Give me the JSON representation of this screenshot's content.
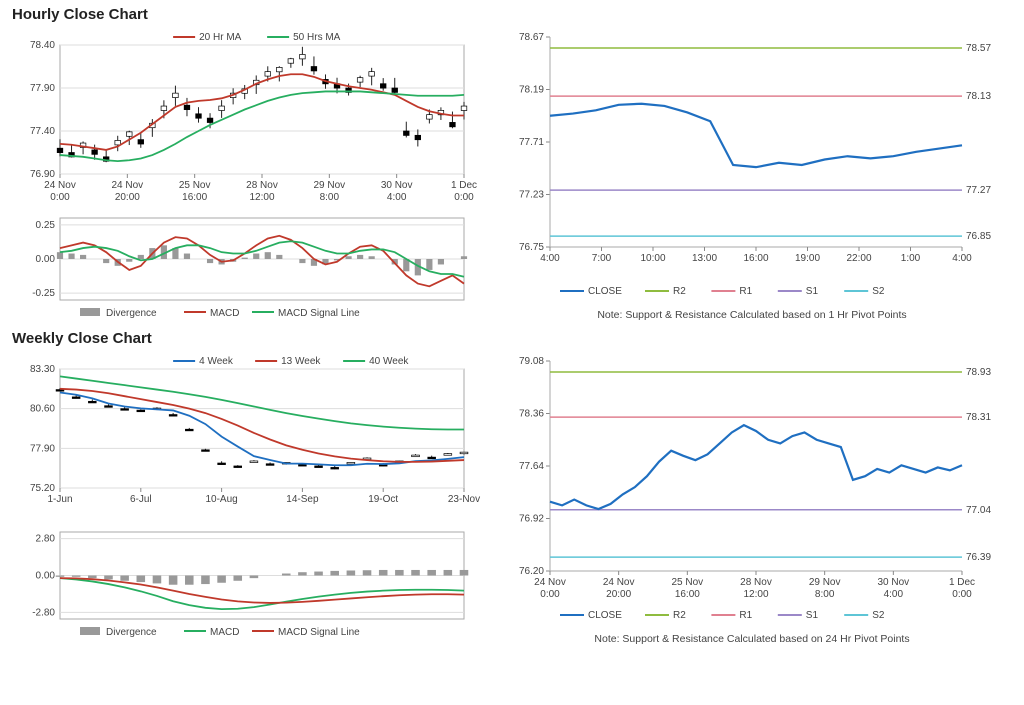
{
  "hourly": {
    "title": "Hourly Close Chart",
    "main": {
      "legend": [
        {
          "label": "20 Hr MA",
          "color": "#c0392b"
        },
        {
          "label": "50 Hrs MA",
          "color": "#27ae60"
        }
      ],
      "y_ticks": [
        76.9,
        77.4,
        77.9,
        78.4
      ],
      "ylim": [
        76.9,
        78.4
      ],
      "x_labels": [
        "24 Nov 0:00",
        "24 Nov 20:00",
        "25 Nov 16:00",
        "28 Nov 12:00",
        "29 Nov 8:00",
        "30 Nov 4:00",
        "1 Dec 0:00"
      ],
      "price": [
        77.2,
        77.15,
        77.22,
        77.18,
        77.1,
        77.25,
        77.35,
        77.3,
        77.45,
        77.65,
        77.8,
        77.7,
        77.6,
        77.55,
        77.65,
        77.8,
        77.85,
        77.95,
        78.05,
        78.1,
        78.2,
        78.25,
        78.15,
        78.0,
        77.95,
        77.9,
        77.98,
        78.05,
        77.95,
        77.9,
        77.4,
        77.35,
        77.55,
        77.6,
        77.5,
        77.65
      ],
      "ma20": [
        77.25,
        77.24,
        77.22,
        77.2,
        77.18,
        77.22,
        77.3,
        77.38,
        77.48,
        77.58,
        77.68,
        77.73,
        77.75,
        77.76,
        77.78,
        77.82,
        77.88,
        77.95,
        78.0,
        78.04,
        78.06,
        78.06,
        78.03,
        77.98,
        77.95,
        77.92,
        77.9,
        77.88,
        77.85,
        77.82,
        77.75,
        77.68,
        77.63,
        77.6,
        77.58,
        77.58
      ],
      "ma50": [
        77.12,
        77.11,
        77.1,
        77.08,
        77.06,
        77.05,
        77.06,
        77.08,
        77.12,
        77.18,
        77.25,
        77.33,
        77.4,
        77.47,
        77.53,
        77.59,
        77.65,
        77.7,
        77.75,
        77.79,
        77.82,
        77.84,
        77.85,
        77.86,
        77.86,
        77.86,
        77.86,
        77.85,
        77.84,
        77.83,
        77.82,
        77.81,
        77.81,
        77.81,
        77.81,
        77.82
      ]
    },
    "macd": {
      "legend": [
        {
          "label": "Divergence",
          "color": "#999",
          "type": "box"
        },
        {
          "label": "MACD",
          "color": "#c0392b"
        },
        {
          "label": "MACD Signal Line",
          "color": "#27ae60"
        }
      ],
      "y_ticks": [
        -0.25,
        0.0,
        0.25
      ],
      "ylim": [
        -0.3,
        0.3
      ],
      "div": [
        0.05,
        0.04,
        0.03,
        0.0,
        -0.03,
        -0.05,
        -0.02,
        0.03,
        0.08,
        0.1,
        0.08,
        0.04,
        0.0,
        -0.03,
        -0.04,
        -0.02,
        0.01,
        0.04,
        0.05,
        0.03,
        0.0,
        -0.03,
        -0.05,
        -0.04,
        -0.01,
        0.02,
        0.03,
        0.02,
        0.0,
        -0.04,
        -0.09,
        -0.12,
        -0.08,
        -0.04,
        0.0,
        0.02
      ],
      "macd": [
        0.08,
        0.1,
        0.12,
        0.1,
        0.05,
        -0.02,
        -0.08,
        -0.05,
        0.04,
        0.12,
        0.16,
        0.15,
        0.1,
        0.03,
        -0.02,
        -0.01,
        0.04,
        0.1,
        0.15,
        0.17,
        0.14,
        0.08,
        0.0,
        -0.04,
        -0.02,
        0.04,
        0.09,
        0.1,
        0.06,
        -0.03,
        -0.12,
        -0.18,
        -0.2,
        -0.16,
        -0.12,
        -0.18
      ],
      "signal": [
        0.05,
        0.06,
        0.08,
        0.09,
        0.08,
        0.06,
        0.02,
        -0.01,
        0.0,
        0.04,
        0.08,
        0.1,
        0.1,
        0.08,
        0.05,
        0.04,
        0.04,
        0.06,
        0.09,
        0.12,
        0.13,
        0.12,
        0.09,
        0.06,
        0.04,
        0.04,
        0.06,
        0.07,
        0.07,
        0.05,
        0.0,
        -0.05,
        -0.09,
        -0.11,
        -0.11,
        -0.13
      ]
    },
    "sr": {
      "ylim": [
        76.75,
        78.67
      ],
      "y_ticks": [
        76.75,
        77.23,
        77.71,
        78.19,
        78.67
      ],
      "x_labels": [
        "4:00",
        "7:00",
        "10:00",
        "13:00",
        "16:00",
        "19:00",
        "22:00",
        "1:00",
        "4:00"
      ],
      "levels": [
        {
          "key": "R2",
          "value": 78.57,
          "color": "#8fbc3f"
        },
        {
          "key": "R1",
          "value": 78.13,
          "color": "#e08090"
        },
        {
          "key": "S1",
          "value": 77.27,
          "color": "#9b88c8"
        },
        {
          "key": "S2",
          "value": 76.85,
          "color": "#5ec5d6"
        }
      ],
      "close": [
        77.95,
        77.97,
        78.0,
        78.05,
        78.06,
        78.04,
        77.98,
        77.9,
        77.5,
        77.48,
        77.52,
        77.5,
        77.55,
        77.58,
        77.56,
        77.58,
        77.62,
        77.65,
        77.68
      ],
      "close_color": "#1f6fc1",
      "legend": [
        {
          "label": "CLOSE",
          "color": "#1f6fc1"
        },
        {
          "label": "R2",
          "color": "#8fbc3f"
        },
        {
          "label": "R1",
          "color": "#e08090"
        },
        {
          "label": "S1",
          "color": "#9b88c8"
        },
        {
          "label": "S2",
          "color": "#5ec5d6"
        }
      ],
      "note": "Note: Support & Resistance Calculated based on 1 Hr Pivot Points"
    }
  },
  "weekly": {
    "title": "Weekly Close Chart",
    "main": {
      "legend": [
        {
          "label": "4 Week",
          "color": "#1f6fc1"
        },
        {
          "label": "13 Week",
          "color": "#c0392b"
        },
        {
          "label": "40 Week",
          "color": "#27ae60"
        }
      ],
      "y_ticks": [
        75.2,
        77.9,
        80.6,
        83.3
      ],
      "ylim": [
        75.2,
        83.3
      ],
      "x_labels": [
        "1-Jun",
        "6-Jul",
        "10-Aug",
        "14-Sep",
        "19-Oct",
        "23-Nov"
      ],
      "price": [
        81.9,
        81.4,
        81.1,
        80.8,
        80.6,
        80.5,
        80.6,
        80.2,
        79.2,
        77.8,
        76.9,
        76.7,
        77.0,
        76.85,
        76.9,
        76.8,
        76.7,
        76.6,
        76.9,
        77.2,
        76.8,
        77.0,
        77.4,
        77.3,
        77.5,
        77.6
      ],
      "w4": [
        81.7,
        81.55,
        81.3,
        80.95,
        80.75,
        80.62,
        80.55,
        80.48,
        80.12,
        79.55,
        78.7,
        78.02,
        77.37,
        77.11,
        76.86,
        76.86,
        76.81,
        76.75,
        76.75,
        76.85,
        76.83,
        76.88,
        77.03,
        77.08,
        77.18,
        77.3
      ],
      "w13": [
        81.95,
        81.9,
        81.8,
        81.65,
        81.45,
        81.25,
        81.05,
        80.85,
        80.6,
        80.3,
        79.9,
        79.45,
        78.95,
        78.5,
        78.1,
        77.8,
        77.55,
        77.35,
        77.2,
        77.1,
        77.02,
        76.98,
        76.98,
        77.0,
        77.05,
        77.1
      ],
      "w40": [
        82.8,
        82.65,
        82.5,
        82.35,
        82.2,
        82.05,
        81.9,
        81.75,
        81.58,
        81.4,
        81.2,
        80.98,
        80.75,
        80.52,
        80.3,
        80.1,
        79.92,
        79.75,
        79.6,
        79.48,
        79.38,
        79.3,
        79.24,
        79.2,
        79.18,
        79.18
      ]
    },
    "macd": {
      "legend": [
        {
          "label": "Divergence",
          "color": "#999",
          "type": "box"
        },
        {
          "label": "MACD",
          "color": "#27ae60"
        },
        {
          "label": "MACD Signal Line",
          "color": "#c0392b"
        }
      ],
      "y_ticks": [
        -2.8,
        0.0,
        2.8
      ],
      "ylim": [
        -3.3,
        3.3
      ],
      "div": [
        -0.1,
        -0.1,
        -0.2,
        -0.3,
        -0.4,
        -0.5,
        -0.6,
        -0.7,
        -0.7,
        -0.65,
        -0.55,
        -0.4,
        -0.2,
        0.0,
        0.15,
        0.25,
        0.3,
        0.35,
        0.38,
        0.4,
        0.42,
        0.42,
        0.42,
        0.42,
        0.42,
        0.42
      ],
      "macd": [
        -0.2,
        -0.3,
        -0.45,
        -0.65,
        -0.9,
        -1.2,
        -1.55,
        -1.95,
        -2.25,
        -2.45,
        -2.55,
        -2.52,
        -2.4,
        -2.2,
        -1.98,
        -1.78,
        -1.6,
        -1.45,
        -1.32,
        -1.22,
        -1.15,
        -1.1,
        -1.08,
        -1.08,
        -1.1,
        -1.15
      ],
      "signal": [
        -0.2,
        -0.22,
        -0.28,
        -0.38,
        -0.52,
        -0.68,
        -0.9,
        -1.15,
        -1.4,
        -1.62,
        -1.82,
        -1.96,
        -2.05,
        -2.08,
        -2.06,
        -2.0,
        -1.92,
        -1.83,
        -1.74,
        -1.65,
        -1.57,
        -1.5,
        -1.45,
        -1.42,
        -1.42,
        -1.45
      ]
    },
    "sr": {
      "ylim": [
        76.2,
        79.08
      ],
      "y_ticks": [
        76.2,
        76.92,
        77.64,
        78.36,
        79.08
      ],
      "x_labels": [
        "24 Nov 0:00",
        "24 Nov 20:00",
        "25 Nov 16:00",
        "28 Nov 12:00",
        "29 Nov 8:00",
        "30 Nov 4:00",
        "1 Dec 0:00"
      ],
      "levels": [
        {
          "key": "R2",
          "value": 78.93,
          "color": "#8fbc3f"
        },
        {
          "key": "R1",
          "value": 78.31,
          "color": "#e08090"
        },
        {
          "key": "S1",
          "value": 77.04,
          "color": "#9b88c8"
        },
        {
          "key": "S2",
          "value": 76.39,
          "color": "#5ec5d6"
        }
      ],
      "close": [
        77.15,
        77.1,
        77.18,
        77.1,
        77.05,
        77.12,
        77.25,
        77.35,
        77.5,
        77.7,
        77.85,
        77.78,
        77.72,
        77.8,
        77.95,
        78.1,
        78.2,
        78.12,
        78.0,
        77.95,
        78.05,
        78.1,
        78.0,
        77.95,
        77.9,
        77.45,
        77.5,
        77.6,
        77.55,
        77.65,
        77.6,
        77.55,
        77.62,
        77.58,
        77.65
      ],
      "close_color": "#1f6fc1",
      "legend": [
        {
          "label": "CLOSE",
          "color": "#1f6fc1"
        },
        {
          "label": "R2",
          "color": "#8fbc3f"
        },
        {
          "label": "R1",
          "color": "#e08090"
        },
        {
          "label": "S1",
          "color": "#9b88c8"
        },
        {
          "label": "S2",
          "color": "#5ec5d6"
        }
      ],
      "note": "Note: Support & Resistance Calculated based on 24 Hr Pivot Points"
    }
  }
}
